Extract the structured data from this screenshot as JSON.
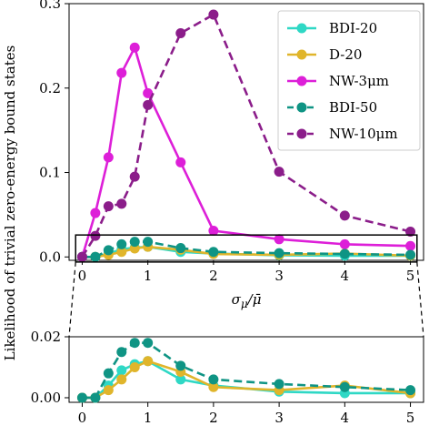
{
  "chart_data": [
    {
      "id": "main",
      "type": "line",
      "xlabel": "σ_μ / μ̄",
      "ylabel": "Likelihood of trivial zero-energy bound states",
      "xlim": [
        -0.2,
        5.2
      ],
      "ylim": [
        -0.004,
        0.3
      ],
      "xticks": [
        "0",
        "1",
        "2",
        "3",
        "4",
        "5"
      ],
      "yticks": [
        "0.0",
        "0.1",
        "0.2",
        "0.3"
      ],
      "legend_position": "top-right",
      "series": [
        {
          "name": "BDI-20",
          "color": "#2fd8c5",
          "dash": false,
          "x": [
            0,
            0.2,
            0.4,
            0.6,
            0.8,
            1.0,
            1.5,
            2.0,
            3.0,
            4.0,
            5.0
          ],
          "y": [
            0,
            0,
            0.004,
            0.009,
            0.011,
            0.012,
            0.006,
            0.004,
            0.002,
            0.0015,
            0.0015
          ]
        },
        {
          "name": "D-20",
          "color": "#e0b52b",
          "dash": false,
          "x": [
            0,
            0.2,
            0.4,
            0.6,
            0.8,
            1.0,
            1.5,
            2.0,
            3.0,
            4.0,
            5.0
          ],
          "y": [
            0,
            0,
            0.0025,
            0.006,
            0.01,
            0.012,
            0.0085,
            0.0035,
            0.0025,
            0.004,
            0.0015
          ]
        },
        {
          "name": "NW-3μm",
          "color": "#dd1fd8",
          "dash": false,
          "x": [
            0,
            0.2,
            0.4,
            0.6,
            0.8,
            1.0,
            1.5,
            2.0,
            3.0,
            4.0,
            5.0
          ],
          "y": [
            0,
            0.052,
            0.118,
            0.218,
            0.248,
            0.194,
            0.112,
            0.031,
            0.021,
            0.015,
            0.013
          ]
        },
        {
          "name": "BDI-50",
          "color": "#0f9484",
          "dash": true,
          "x": [
            0,
            0.2,
            0.4,
            0.6,
            0.8,
            1.0,
            1.5,
            2.0,
            3.0,
            4.0,
            5.0
          ],
          "y": [
            0,
            0,
            0.008,
            0.015,
            0.018,
            0.018,
            0.0105,
            0.006,
            0.0045,
            0.0035,
            0.0025
          ]
        },
        {
          "name": "NW-10μm",
          "color": "#8b1d8a",
          "dash": true,
          "x": [
            0,
            0.2,
            0.4,
            0.6,
            0.8,
            1.0,
            1.5,
            2.0,
            3.0,
            4.0,
            5.0
          ],
          "y": [
            0,
            0.025,
            0.06,
            0.063,
            0.095,
            0.18,
            0.265,
            0.287,
            0.101,
            0.049,
            0.03
          ]
        }
      ]
    },
    {
      "id": "inset",
      "type": "line",
      "xlim": [
        -0.2,
        5.2
      ],
      "ylim": [
        -0.0015,
        0.02
      ],
      "xticks": [
        "0",
        "1",
        "2",
        "3",
        "4",
        "5"
      ],
      "yticks": [
        "0.00",
        "0.02"
      ],
      "zoom_region": {
        "x": [
          -0.1,
          5.1
        ],
        "y": [
          -0.006,
          0.026
        ]
      },
      "series_ref": [
        "BDI-20",
        "D-20",
        "BDI-50"
      ]
    }
  ],
  "legend": [
    {
      "label": "BDI-20",
      "icon": "solid-line-marker"
    },
    {
      "label": "D-20",
      "icon": "solid-line-marker"
    },
    {
      "label": "NW-3μm",
      "icon": "solid-line-marker"
    },
    {
      "label": "BDI-50",
      "icon": "dashed-line-marker"
    },
    {
      "label": "NW-10μm",
      "icon": "dashed-line-marker"
    }
  ]
}
